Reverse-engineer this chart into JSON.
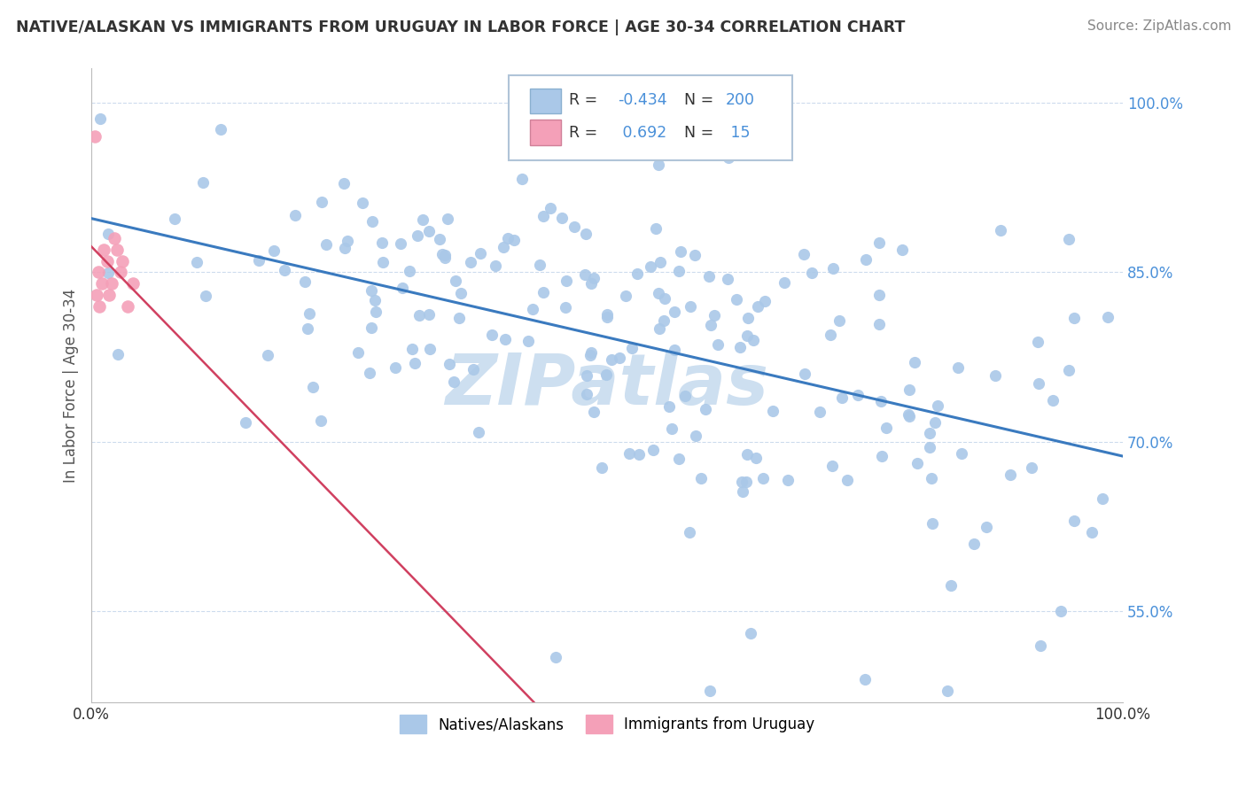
{
  "title": "NATIVE/ALASKAN VS IMMIGRANTS FROM URUGUAY IN LABOR FORCE | AGE 30-34 CORRELATION CHART",
  "source": "Source: ZipAtlas.com",
  "ylabel": "In Labor Force | Age 30-34",
  "xlim": [
    0.0,
    1.0
  ],
  "ylim": [
    0.47,
    1.03
  ],
  "x_tick_labels": [
    "0.0%",
    "100.0%"
  ],
  "y_ticks": [
    0.55,
    0.7,
    0.85,
    1.0
  ],
  "y_tick_labels": [
    "55.0%",
    "70.0%",
    "85.0%",
    "100.0%"
  ],
  "blue_color": "#aac8e8",
  "pink_color": "#f4a0b8",
  "blue_line_color": "#3a7abf",
  "pink_line_color": "#d04060",
  "watermark": "ZIPatlas",
  "watermark_color": "#cddff0",
  "background_color": "#ffffff",
  "grid_color": "#c8d8ec",
  "tick_label_color": "#4a90d9",
  "ylabel_color": "#555555"
}
